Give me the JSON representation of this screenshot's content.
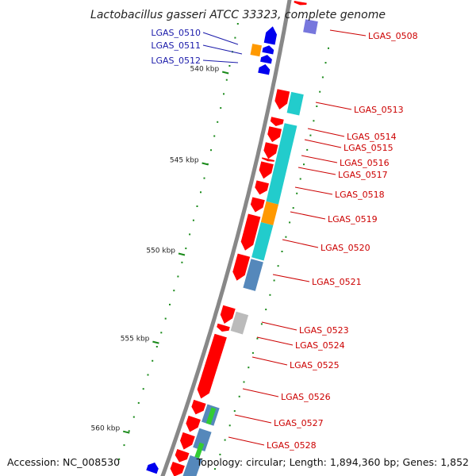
{
  "title": "Lactobacillus gasseri ATCC 33323, complete genome",
  "footer": {
    "accession": "Accession: NC_008530",
    "summary": "Topology: circular; Length: 1,894,360 bp; Genes: 1,852"
  },
  "ticks": [
    "540 kbp",
    "545 kbp",
    "550 kbp",
    "555 kbp",
    "560 kbp"
  ],
  "labels_minus_strand": [
    "LGAS_0510",
    "LGAS_0511",
    "LGAS_0512"
  ],
  "labels_plus_strand": [
    "LGAS_0508",
    "LGAS_0513",
    "LGAS_0514",
    "LGAS_0515",
    "LGAS_0516",
    "LGAS_0517",
    "LGAS_0518",
    "LGAS_0519",
    "LGAS_0520",
    "LGAS_0521",
    "LGAS_0523",
    "LGAS_0524",
    "LGAS_0525",
    "LGAS_0526",
    "LGAS_0527",
    "LGAS_0528"
  ],
  "colors": {
    "cds_plus": "#ff0000",
    "cds_minus": "#0000ee",
    "backbone": "#888888",
    "tick": "#1a8a1a",
    "cog_cyan": "#22cccc",
    "cog_orange": "#ff9900",
    "cog_steel": "#5588bb",
    "cog_green": "#33cc33",
    "cog_gray": "#bbbbbb",
    "cog_purple": "#7777dd",
    "label_plus": "#cc0000",
    "label_minus": "#1a1aaa"
  }
}
